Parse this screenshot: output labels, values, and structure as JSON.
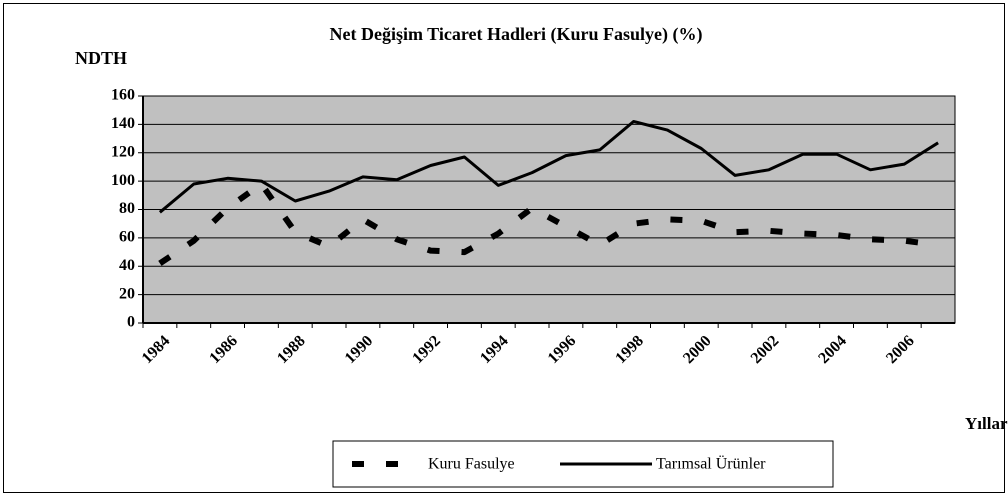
{
  "chart_data": {
    "type": "line",
    "title": "Net Değişim Ticaret Hadleri  (Kuru Fasulye) (%)",
    "y_label": "NDTH",
    "x_label": "Yıllar",
    "categories": [
      "1984",
      null,
      "1986",
      null,
      "1988",
      null,
      "1990",
      null,
      "1992",
      null,
      "1994",
      null,
      "1996",
      null,
      "1998",
      null,
      "2000",
      null,
      "2002",
      null,
      "2004",
      null,
      "2006",
      null
    ],
    "series": [
      {
        "name": "Kuru Fasulye",
        "color": "#000000",
        "style": "dashed",
        "values": [
          42,
          58,
          81,
          98,
          64,
          54,
          73,
          59,
          51,
          50,
          63,
          81,
          68,
          55,
          70,
          73,
          72,
          64,
          65,
          63,
          62,
          59,
          58,
          55
        ]
      },
      {
        "name": "Tarımsal Ürünler",
        "color": "#000000",
        "style": "solid",
        "values": [
          78,
          98,
          102,
          100,
          86,
          93,
          103,
          101,
          111,
          117,
          97,
          106,
          118,
          122,
          142,
          136,
          123,
          104,
          108,
          119,
          119,
          108,
          112,
          127
        ]
      }
    ],
    "ylim": [
      0,
      160
    ],
    "yticks": [
      0,
      20,
      40,
      60,
      80,
      100,
      120,
      140,
      160
    ],
    "grid": true,
    "legend": "bottom",
    "plot_background": "#c0c0c0"
  }
}
